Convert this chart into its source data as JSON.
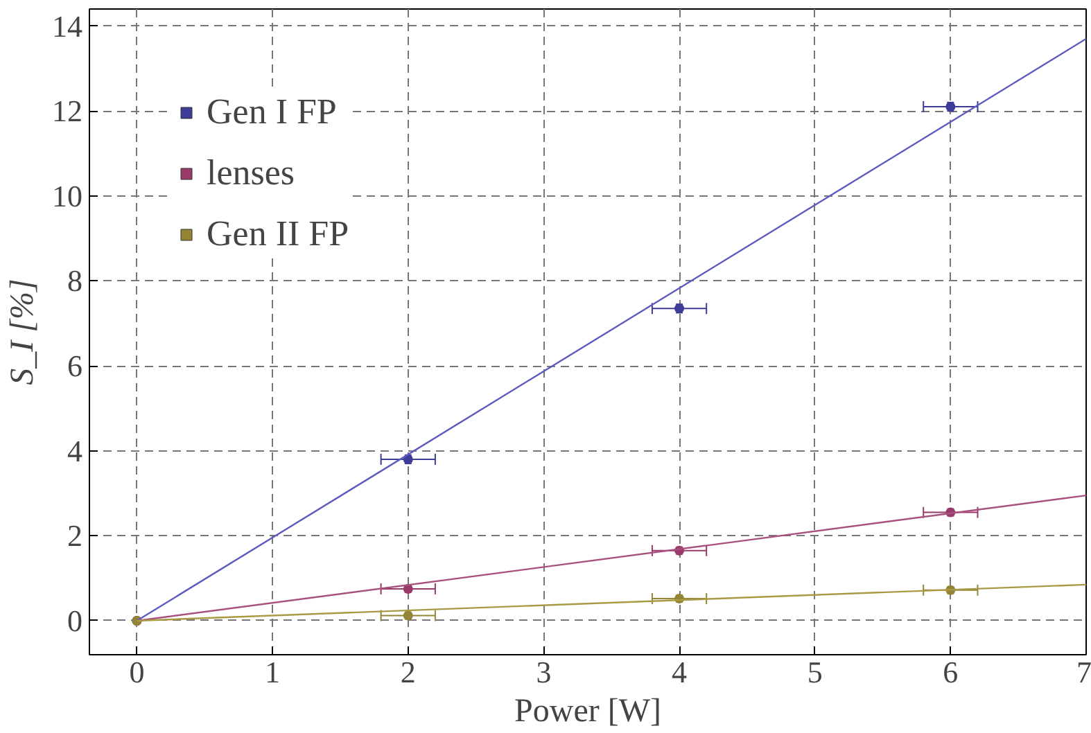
{
  "chart_data": {
    "type": "scatter",
    "xlabel": "Power [W]",
    "ylabel": "S_I [%]",
    "xlim": [
      -0.35,
      7
    ],
    "ylim": [
      -0.8,
      14.4
    ],
    "xticks": [
      0,
      1,
      2,
      3,
      4,
      5,
      6,
      7
    ],
    "yticks": [
      0,
      2,
      4,
      6,
      8,
      10,
      12,
      14
    ],
    "grid": true,
    "legend": "top left",
    "marker": "circle",
    "series": [
      {
        "name": "Gen I FP",
        "color": "#3d3d99",
        "x": [
          0,
          2,
          4,
          6
        ],
        "values": [
          0,
          3.8,
          7.35,
          12.1
        ],
        "errors": [
          null,
          0.1,
          0.1,
          0.1
        ],
        "xerrors": [
          null,
          0.2,
          0.2,
          0.2
        ]
      },
      {
        "name": "lenses",
        "color": "#993a6b",
        "x": [
          0,
          2,
          4,
          6
        ],
        "values": [
          0,
          0.75,
          1.65,
          2.55
        ],
        "errors": [
          null,
          0.08,
          0.08,
          0.08
        ],
        "xerrors": [
          null,
          0.2,
          0.2,
          0.2
        ]
      },
      {
        "name": "Gen II FP",
        "color": "#948435",
        "x": [
          0,
          2,
          4,
          6
        ],
        "values": [
          0,
          0.12,
          0.52,
          0.72
        ],
        "errors": [
          null,
          0.08,
          0.08,
          0.08
        ],
        "xerrors": [
          null,
          0.2,
          0.2,
          0.2
        ]
      },
      {
        "type": "line",
        "marker": "none",
        "color": "#5c5cc0",
        "x": [
          0,
          7
        ],
        "values": [
          0,
          13.7
        ]
      },
      {
        "type": "line",
        "marker": "none",
        "color": "#a8507e",
        "x": [
          0,
          7
        ],
        "values": [
          0,
          2.95
        ]
      },
      {
        "type": "line",
        "marker": "none",
        "color": "#a89a45",
        "x": [
          0,
          7
        ],
        "values": [
          0,
          0.85
        ]
      }
    ]
  }
}
